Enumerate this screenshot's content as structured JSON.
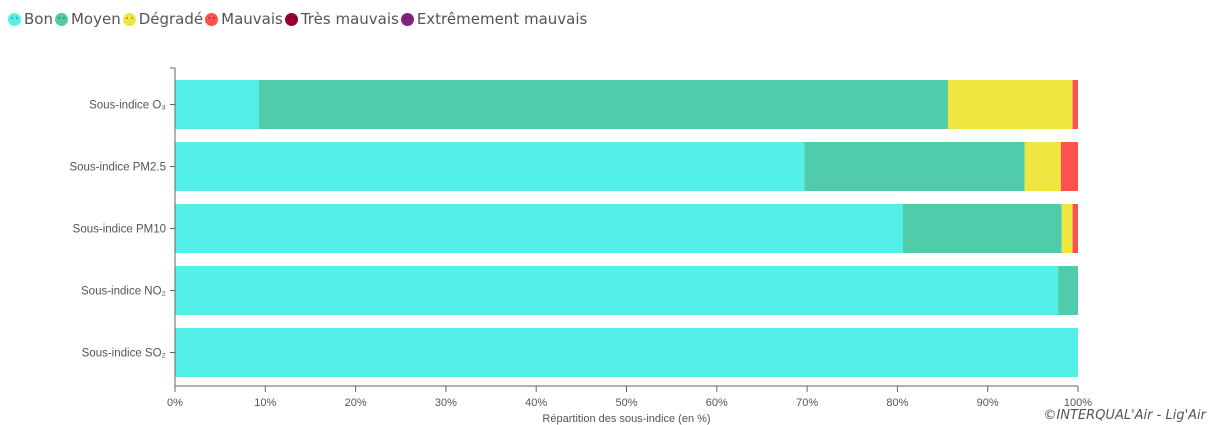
{
  "legend": {
    "items": [
      {
        "label": "Bon",
        "color": "#52f0e8",
        "icon": "smile-icon"
      },
      {
        "label": "Moyen",
        "color": "#50ccaa",
        "icon": "neutral-face-icon"
      },
      {
        "label": "Dégradé",
        "color": "#f0e641",
        "icon": "frown-face-icon"
      },
      {
        "label": "Mauvais",
        "color": "#ff5050",
        "icon": "sad-face-icon"
      },
      {
        "label": "Très mauvais",
        "color": "#960032",
        "icon": "angry-face-icon"
      },
      {
        "label": "Extrêmement mauvais",
        "color": "#872181",
        "icon": "very-angry-face-icon"
      }
    ]
  },
  "chart_data": {
    "type": "bar",
    "orientation": "horizontal",
    "stacked": true,
    "categories": [
      "Sous-indice O₃",
      "Sous-indice PM2.5",
      "Sous-indice PM10",
      "Sous-indice NO₂",
      "Sous-indice SO₂"
    ],
    "series": [
      {
        "name": "Bon",
        "color": "#52f0e8",
        "values": [
          9.3,
          69.7,
          80.6,
          97.8,
          100
        ]
      },
      {
        "name": "Moyen",
        "color": "#50ccaa",
        "values": [
          76.3,
          24.4,
          17.6,
          2.2,
          0
        ]
      },
      {
        "name": "Dégradé",
        "color": "#f0e641",
        "values": [
          13.8,
          4.0,
          1.2,
          0,
          0
        ]
      },
      {
        "name": "Mauvais",
        "color": "#ff5050",
        "values": [
          0.6,
          1.9,
          0.6,
          0,
          0
        ]
      },
      {
        "name": "Très mauvais",
        "color": "#960032",
        "values": [
          0,
          0,
          0,
          0,
          0
        ]
      },
      {
        "name": "Extrêmement mauvais",
        "color": "#872181",
        "values": [
          0,
          0,
          0,
          0,
          0
        ]
      }
    ],
    "xlim": [
      0,
      100
    ],
    "xticks": [
      "0%",
      "10%",
      "20%",
      "30%",
      "40%",
      "50%",
      "60%",
      "70%",
      "80%",
      "90%",
      "100%"
    ],
    "xlabel": "Répartition des sous-indice (en %)",
    "ylabel": "",
    "grid": false,
    "legend_position": "top-left"
  },
  "credit": "©INTERQUAL'Air - Lig'Air"
}
